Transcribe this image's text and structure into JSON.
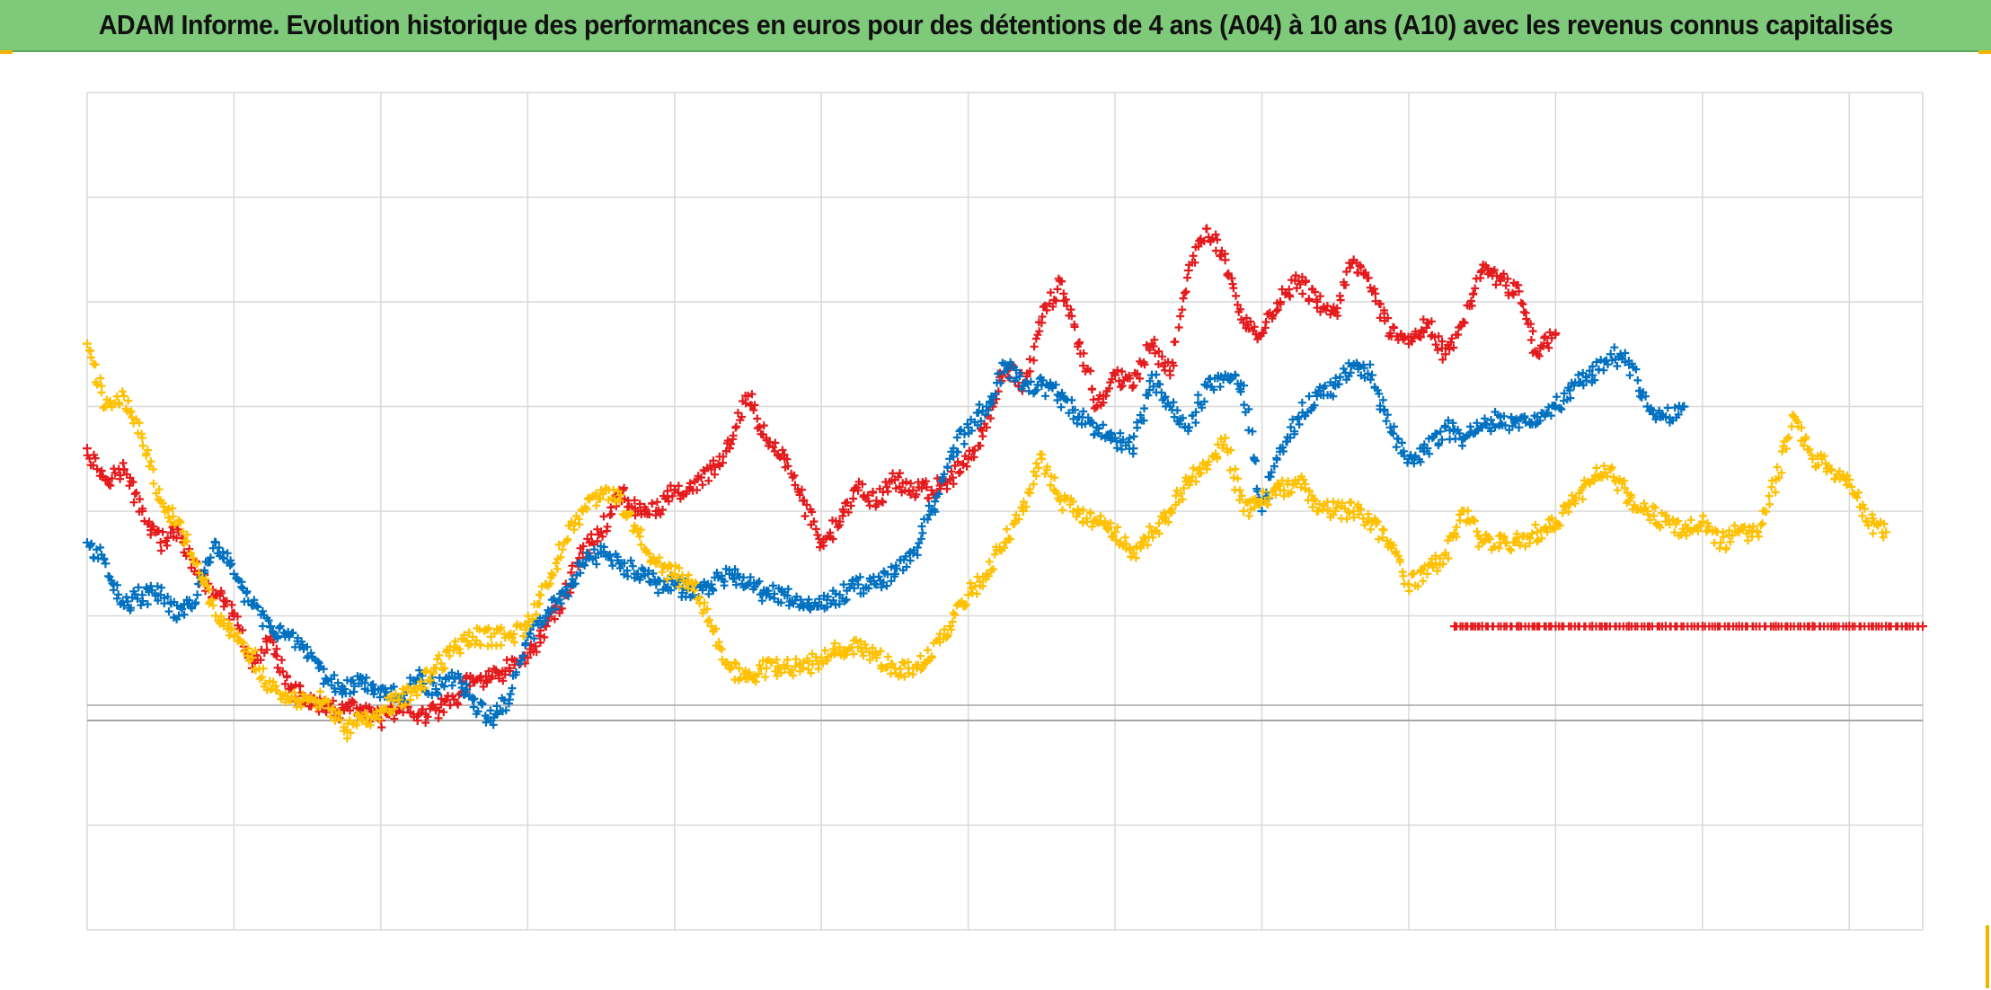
{
  "title": "ADAM Informe. Evolution historique des performances en euros pour des détentions de 4 ans (A04) à 10 ans (A10) avec les revenus connus capitalisés",
  "colors": {
    "header_bg": "#7fc97a",
    "grid": "#d9d9d9",
    "baseline": "#a6a6a6",
    "accent": "#f2b400"
  },
  "chart_data": {
    "type": "scatter",
    "title": "ADAM Informe. Evolution historique des performances en euros pour des détentions de 4 ans (A04) à 10 ans (A10) avec les revenus connus capitalisés",
    "xlabel": "",
    "ylabel": "",
    "xlim": [
      0,
      100
    ],
    "ylim": [
      -20,
      60
    ],
    "grid": true,
    "legend": "none",
    "marker": "plus",
    "baseline_y": 0,
    "series": [
      {
        "color": "#e41a1c",
        "points": [
          [
            0,
            26
          ],
          [
            1,
            23
          ],
          [
            2,
            24
          ],
          [
            3,
            20
          ],
          [
            4,
            17
          ],
          [
            5,
            18
          ],
          [
            6,
            14
          ],
          [
            7,
            12
          ],
          [
            8,
            10
          ],
          [
            9,
            5
          ],
          [
            10,
            8
          ],
          [
            11,
            3
          ],
          [
            12,
            2
          ],
          [
            13,
            1
          ],
          [
            14,
            1
          ],
          [
            15,
            1
          ],
          [
            16,
            0
          ],
          [
            17,
            1
          ],
          [
            18,
            0
          ],
          [
            19,
            1
          ],
          [
            20,
            2
          ],
          [
            21,
            4
          ],
          [
            22,
            4
          ],
          [
            23,
            5
          ],
          [
            24,
            6
          ],
          [
            25,
            9
          ],
          [
            26,
            12
          ],
          [
            27,
            16
          ],
          [
            28,
            18
          ],
          [
            29,
            22
          ],
          [
            30,
            20
          ],
          [
            31,
            20
          ],
          [
            32,
            22
          ],
          [
            33,
            22
          ],
          [
            34,
            24
          ],
          [
            35,
            26
          ],
          [
            36,
            31
          ],
          [
            37,
            27
          ],
          [
            38,
            25
          ],
          [
            39,
            21
          ],
          [
            40,
            17
          ],
          [
            41,
            19
          ],
          [
            42,
            22
          ],
          [
            43,
            21
          ],
          [
            44,
            23
          ],
          [
            45,
            22
          ],
          [
            46,
            22
          ],
          [
            47,
            23
          ],
          [
            48,
            25
          ],
          [
            49,
            28
          ],
          [
            50,
            34
          ],
          [
            51,
            32
          ],
          [
            52,
            38
          ],
          [
            53,
            42
          ],
          [
            54,
            36
          ],
          [
            55,
            30
          ],
          [
            56,
            33
          ],
          [
            57,
            32
          ],
          [
            58,
            36
          ],
          [
            59,
            33
          ],
          [
            60,
            43
          ],
          [
            61,
            47
          ],
          [
            62,
            44
          ],
          [
            63,
            38
          ],
          [
            64,
            37
          ],
          [
            65,
            40
          ],
          [
            66,
            42
          ],
          [
            67,
            40
          ],
          [
            68,
            39
          ],
          [
            69,
            44
          ],
          [
            70,
            41
          ],
          [
            71,
            37
          ],
          [
            72,
            36
          ],
          [
            73,
            38
          ],
          [
            74,
            35
          ],
          [
            75,
            38
          ],
          [
            76,
            43
          ],
          [
            77,
            42
          ],
          [
            78,
            41
          ],
          [
            79,
            35
          ],
          [
            80,
            37
          ]
        ]
      },
      {
        "color": "#e41a1c",
        "points": [
          [
            74.5,
            9
          ],
          [
            76,
            9
          ],
          [
            78,
            9
          ],
          [
            80,
            9
          ],
          [
            82,
            9
          ],
          [
            84,
            9
          ],
          [
            86,
            9
          ],
          [
            88,
            9
          ],
          [
            90,
            9
          ],
          [
            92,
            9
          ],
          [
            94,
            9
          ],
          [
            96,
            9
          ],
          [
            98,
            9
          ],
          [
            100,
            9
          ]
        ]
      },
      {
        "color": "#0070c0",
        "points": [
          [
            0,
            17
          ],
          [
            1,
            15
          ],
          [
            2,
            11
          ],
          [
            3,
            12
          ],
          [
            4,
            12
          ],
          [
            5,
            10
          ],
          [
            6,
            12
          ],
          [
            7,
            17
          ],
          [
            8,
            14
          ],
          [
            9,
            11
          ],
          [
            10,
            9
          ],
          [
            11,
            8
          ],
          [
            12,
            6
          ],
          [
            13,
            4
          ],
          [
            14,
            3
          ],
          [
            15,
            4
          ],
          [
            16,
            3
          ],
          [
            17,
            2
          ],
          [
            18,
            4
          ],
          [
            19,
            3
          ],
          [
            20,
            4
          ],
          [
            21,
            2
          ],
          [
            22,
            0
          ],
          [
            23,
            2
          ],
          [
            24,
            8
          ],
          [
            25,
            10
          ],
          [
            26,
            12
          ],
          [
            27,
            15
          ],
          [
            28,
            16
          ],
          [
            29,
            15
          ],
          [
            30,
            14
          ],
          [
            31,
            13
          ],
          [
            32,
            13
          ],
          [
            33,
            12
          ],
          [
            34,
            13
          ],
          [
            35,
            14
          ],
          [
            36,
            13
          ],
          [
            37,
            12
          ],
          [
            38,
            12
          ],
          [
            39,
            11
          ],
          [
            40,
            11
          ],
          [
            41,
            12
          ],
          [
            42,
            13
          ],
          [
            43,
            13
          ],
          [
            44,
            14
          ],
          [
            45,
            16
          ],
          [
            46,
            20
          ],
          [
            47,
            25
          ],
          [
            48,
            28
          ],
          [
            49,
            30
          ],
          [
            50,
            34
          ],
          [
            51,
            32
          ],
          [
            52,
            32
          ],
          [
            53,
            31
          ],
          [
            54,
            29
          ],
          [
            55,
            28
          ],
          [
            56,
            27
          ],
          [
            57,
            26
          ],
          [
            58,
            33
          ],
          [
            59,
            30
          ],
          [
            60,
            28
          ],
          [
            61,
            32
          ],
          [
            62,
            33
          ],
          [
            63,
            32
          ],
          [
            64,
            20
          ],
          [
            65,
            26
          ],
          [
            66,
            29
          ],
          [
            67,
            31
          ],
          [
            68,
            32
          ],
          [
            69,
            34
          ],
          [
            70,
            33
          ],
          [
            71,
            28
          ],
          [
            72,
            25
          ],
          [
            73,
            26
          ],
          [
            74,
            28
          ],
          [
            75,
            27
          ],
          [
            76,
            28
          ],
          [
            77,
            29
          ],
          [
            78,
            28
          ],
          [
            79,
            29
          ],
          [
            80,
            30
          ],
          [
            81,
            32
          ],
          [
            82,
            33
          ],
          [
            83,
            35
          ],
          [
            84,
            34
          ],
          [
            85,
            30
          ],
          [
            86,
            29
          ],
          [
            87,
            30
          ]
        ]
      },
      {
        "color": "#ffc000",
        "points": [
          [
            0,
            36
          ],
          [
            1,
            30
          ],
          [
            2,
            31
          ],
          [
            3,
            27
          ],
          [
            4,
            21
          ],
          [
            5,
            19
          ],
          [
            6,
            15
          ],
          [
            7,
            10
          ],
          [
            8,
            8
          ],
          [
            9,
            6
          ],
          [
            10,
            3
          ],
          [
            11,
            2
          ],
          [
            12,
            2
          ],
          [
            13,
            2
          ],
          [
            14,
            -1
          ],
          [
            15,
            0
          ],
          [
            16,
            1
          ],
          [
            17,
            2
          ],
          [
            18,
            3
          ],
          [
            19,
            5
          ],
          [
            20,
            7
          ],
          [
            21,
            8
          ],
          [
            22,
            8
          ],
          [
            23,
            8
          ],
          [
            24,
            9
          ],
          [
            25,
            13
          ],
          [
            26,
            17
          ],
          [
            27,
            20
          ],
          [
            28,
            22
          ],
          [
            29,
            21
          ],
          [
            30,
            18
          ],
          [
            31,
            15
          ],
          [
            32,
            14
          ],
          [
            33,
            13
          ],
          [
            34,
            9
          ],
          [
            35,
            5
          ],
          [
            36,
            4
          ],
          [
            37,
            5
          ],
          [
            38,
            5
          ],
          [
            39,
            5
          ],
          [
            40,
            6
          ],
          [
            41,
            7
          ],
          [
            42,
            7
          ],
          [
            43,
            6
          ],
          [
            44,
            5
          ],
          [
            45,
            5
          ],
          [
            46,
            6
          ],
          [
            47,
            9
          ],
          [
            48,
            12
          ],
          [
            49,
            14
          ],
          [
            50,
            17
          ],
          [
            51,
            20
          ],
          [
            52,
            25
          ],
          [
            53,
            21
          ],
          [
            54,
            20
          ],
          [
            55,
            19
          ],
          [
            56,
            18
          ],
          [
            57,
            16
          ],
          [
            58,
            18
          ],
          [
            59,
            20
          ],
          [
            60,
            23
          ],
          [
            61,
            24
          ],
          [
            62,
            27
          ],
          [
            63,
            20
          ],
          [
            64,
            21
          ],
          [
            65,
            22
          ],
          [
            66,
            23
          ],
          [
            67,
            20
          ],
          [
            68,
            20
          ],
          [
            69,
            20
          ],
          [
            70,
            19
          ],
          [
            71,
            17
          ],
          [
            72,
            13
          ],
          [
            73,
            14
          ],
          [
            74,
            16
          ],
          [
            75,
            20
          ],
          [
            76,
            17
          ],
          [
            77,
            17
          ],
          [
            78,
            17
          ],
          [
            79,
            18
          ],
          [
            80,
            19
          ],
          [
            81,
            21
          ],
          [
            82,
            23
          ],
          [
            83,
            24
          ],
          [
            84,
            21
          ],
          [
            85,
            20
          ],
          [
            86,
            19
          ],
          [
            87,
            18
          ],
          [
            88,
            19
          ],
          [
            89,
            17
          ],
          [
            90,
            18
          ],
          [
            91,
            18
          ],
          [
            92,
            23
          ],
          [
            93,
            29
          ],
          [
            94,
            25
          ],
          [
            95,
            24
          ],
          [
            96,
            23
          ],
          [
            97,
            19
          ],
          [
            98,
            18
          ]
        ]
      }
    ]
  }
}
